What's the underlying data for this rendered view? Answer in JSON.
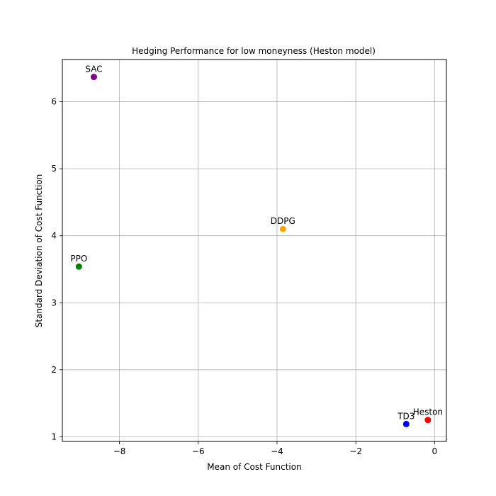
{
  "chart_data": {
    "type": "scatter",
    "title": "Hedging Performance for low moneyness (Heston model)",
    "xlabel": "Mean of Cost Function",
    "ylabel": "Standard Deviation of Cost Function",
    "xlim": [
      -9.45,
      0.3
    ],
    "ylim": [
      0.93,
      6.63
    ],
    "xticks": [
      -8,
      -6,
      -4,
      -2,
      0
    ],
    "yticks": [
      1,
      2,
      3,
      4,
      5,
      6
    ],
    "grid": true,
    "points": [
      {
        "label": "SAC",
        "x": -8.65,
        "y": 6.37,
        "color": "#800080"
      },
      {
        "label": "DDPG",
        "x": -3.85,
        "y": 4.1,
        "color": "#ffa500"
      },
      {
        "label": "PPO",
        "x": -9.03,
        "y": 3.54,
        "color": "#008000"
      },
      {
        "label": "TD3",
        "x": -0.72,
        "y": 1.19,
        "color": "#0000ff"
      },
      {
        "label": "Heston",
        "x": -0.17,
        "y": 1.25,
        "color": "#ff0000"
      }
    ]
  }
}
